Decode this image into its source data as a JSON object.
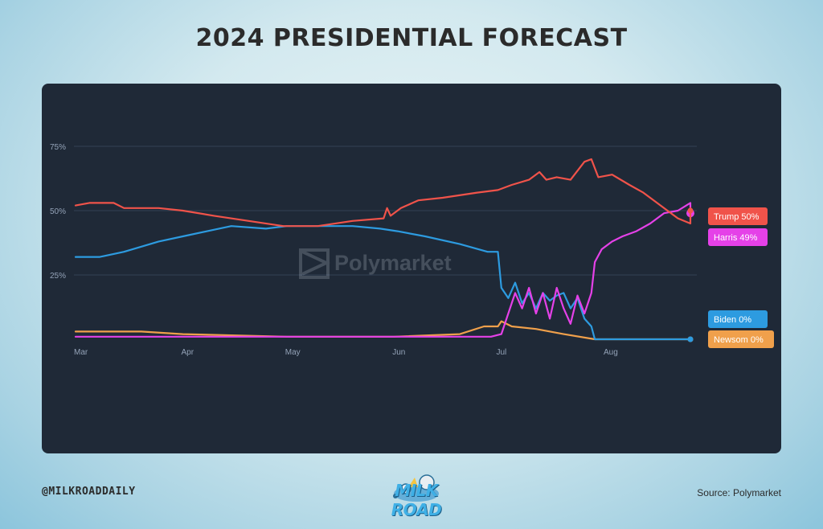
{
  "page": {
    "title": "2024 PRESIDENTIAL FORECAST",
    "handle": "@MILKROADDAILY",
    "source": "Source: Polymarket",
    "watermark": "Polymarket",
    "logo_text": "MILK ROAD"
  },
  "colors": {
    "panel_bg": "#1f2937",
    "grid": "#334155",
    "tick_text": "#94a3b8",
    "trump": "#f0534a",
    "harris": "#e541e8",
    "biden": "#2d9be0",
    "newsom": "#f0a04b"
  },
  "chart_data": {
    "type": "line",
    "x_unit": "date",
    "x_range": [
      "2024-03-01",
      "2024-08-31"
    ],
    "y_range": [
      0,
      100
    ],
    "y_ticks": [
      {
        "value": 25,
        "label": "25%"
      },
      {
        "value": 50,
        "label": "50%"
      },
      {
        "value": 75,
        "label": "75%"
      }
    ],
    "x_ticks": [
      {
        "date": "2024-03-01",
        "label": "Mar"
      },
      {
        "date": "2024-04-01",
        "label": "Apr"
      },
      {
        "date": "2024-05-01",
        "label": "May"
      },
      {
        "date": "2024-06-01",
        "label": "Jun"
      },
      {
        "date": "2024-07-01",
        "label": "Jul"
      },
      {
        "date": "2024-08-01",
        "label": "Aug"
      }
    ],
    "grid": true,
    "legend": "end-of-line labels",
    "series": [
      {
        "name": "Trump",
        "end_label": "Trump 50%",
        "color": "#f0534a",
        "points": [
          [
            "2024-03-01",
            52
          ],
          [
            "2024-03-05",
            53
          ],
          [
            "2024-03-12",
            53
          ],
          [
            "2024-03-15",
            51
          ],
          [
            "2024-03-25",
            51
          ],
          [
            "2024-04-01",
            50
          ],
          [
            "2024-04-10",
            48
          ],
          [
            "2024-04-20",
            46
          ],
          [
            "2024-04-30",
            44
          ],
          [
            "2024-05-10",
            44
          ],
          [
            "2024-05-20",
            46
          ],
          [
            "2024-05-29",
            47
          ],
          [
            "2024-05-30",
            51
          ],
          [
            "2024-05-31",
            48
          ],
          [
            "2024-06-03",
            51
          ],
          [
            "2024-06-08",
            54
          ],
          [
            "2024-06-15",
            55
          ],
          [
            "2024-06-25",
            57
          ],
          [
            "2024-07-01",
            58
          ],
          [
            "2024-07-05",
            60
          ],
          [
            "2024-07-10",
            62
          ],
          [
            "2024-07-13",
            65
          ],
          [
            "2024-07-15",
            62
          ],
          [
            "2024-07-18",
            63
          ],
          [
            "2024-07-22",
            62
          ],
          [
            "2024-07-26",
            69
          ],
          [
            "2024-07-28",
            70
          ],
          [
            "2024-07-30",
            63
          ],
          [
            "2024-08-03",
            64
          ],
          [
            "2024-08-08",
            60
          ],
          [
            "2024-08-12",
            57
          ],
          [
            "2024-08-16",
            53
          ],
          [
            "2024-08-19",
            50
          ],
          [
            "2024-08-22",
            47
          ],
          [
            "2024-08-27",
            45
          ],
          [
            "2024-08-30",
            51
          ],
          [
            "2024-09-02",
            50
          ],
          [
            "2024-09-05",
            50
          ]
        ]
      },
      {
        "name": "Harris",
        "end_label": "Harris 49%",
        "color": "#e541e8",
        "points": [
          [
            "2024-03-01",
            1
          ],
          [
            "2024-04-01",
            1
          ],
          [
            "2024-05-01",
            1
          ],
          [
            "2024-06-01",
            1
          ],
          [
            "2024-06-29",
            1
          ],
          [
            "2024-07-02",
            2
          ],
          [
            "2024-07-04",
            10
          ],
          [
            "2024-07-06",
            18
          ],
          [
            "2024-07-08",
            12
          ],
          [
            "2024-07-10",
            20
          ],
          [
            "2024-07-12",
            10
          ],
          [
            "2024-07-14",
            18
          ],
          [
            "2024-07-16",
            8
          ],
          [
            "2024-07-18",
            20
          ],
          [
            "2024-07-20",
            12
          ],
          [
            "2024-07-22",
            6
          ],
          [
            "2024-07-24",
            17
          ],
          [
            "2024-07-26",
            10
          ],
          [
            "2024-07-28",
            18
          ],
          [
            "2024-07-29",
            30
          ],
          [
            "2024-07-31",
            35
          ],
          [
            "2024-08-03",
            38
          ],
          [
            "2024-08-06",
            40
          ],
          [
            "2024-08-10",
            42
          ],
          [
            "2024-08-14",
            45
          ],
          [
            "2024-08-18",
            49
          ],
          [
            "2024-08-22",
            50
          ],
          [
            "2024-08-27",
            53
          ],
          [
            "2024-08-30",
            47
          ],
          [
            "2024-09-02",
            49
          ],
          [
            "2024-09-05",
            49
          ]
        ]
      },
      {
        "name": "Biden",
        "end_label": "Biden 0%",
        "color": "#2d9be0",
        "points": [
          [
            "2024-03-01",
            32
          ],
          [
            "2024-03-08",
            32
          ],
          [
            "2024-03-15",
            34
          ],
          [
            "2024-03-25",
            38
          ],
          [
            "2024-04-01",
            40
          ],
          [
            "2024-04-08",
            42
          ],
          [
            "2024-04-15",
            44
          ],
          [
            "2024-04-25",
            43
          ],
          [
            "2024-05-01",
            44
          ],
          [
            "2024-05-10",
            44
          ],
          [
            "2024-05-20",
            44
          ],
          [
            "2024-05-28",
            43
          ],
          [
            "2024-06-02",
            42
          ],
          [
            "2024-06-10",
            40
          ],
          [
            "2024-06-20",
            37
          ],
          [
            "2024-06-28",
            34
          ],
          [
            "2024-07-01",
            34
          ],
          [
            "2024-07-02",
            20
          ],
          [
            "2024-07-04",
            16
          ],
          [
            "2024-07-06",
            22
          ],
          [
            "2024-07-08",
            14
          ],
          [
            "2024-07-10",
            18
          ],
          [
            "2024-07-12",
            12
          ],
          [
            "2024-07-14",
            18
          ],
          [
            "2024-07-16",
            15
          ],
          [
            "2024-07-18",
            17
          ],
          [
            "2024-07-20",
            18
          ],
          [
            "2024-07-22",
            12
          ],
          [
            "2024-07-24",
            16
          ],
          [
            "2024-07-26",
            8
          ],
          [
            "2024-07-28",
            5
          ],
          [
            "2024-07-29",
            0
          ],
          [
            "2024-09-05",
            0
          ]
        ]
      },
      {
        "name": "Newsom",
        "end_label": "Newsom 0%",
        "color": "#f0a04b",
        "points": [
          [
            "2024-03-01",
            3
          ],
          [
            "2024-03-20",
            3
          ],
          [
            "2024-04-01",
            2
          ],
          [
            "2024-05-01",
            1
          ],
          [
            "2024-06-01",
            1
          ],
          [
            "2024-06-20",
            2
          ],
          [
            "2024-06-27",
            5
          ],
          [
            "2024-07-01",
            5
          ],
          [
            "2024-07-02",
            7
          ],
          [
            "2024-07-05",
            5
          ],
          [
            "2024-07-12",
            4
          ],
          [
            "2024-07-20",
            2
          ],
          [
            "2024-07-29",
            0
          ],
          [
            "2024-09-05",
            0
          ]
        ]
      }
    ]
  }
}
